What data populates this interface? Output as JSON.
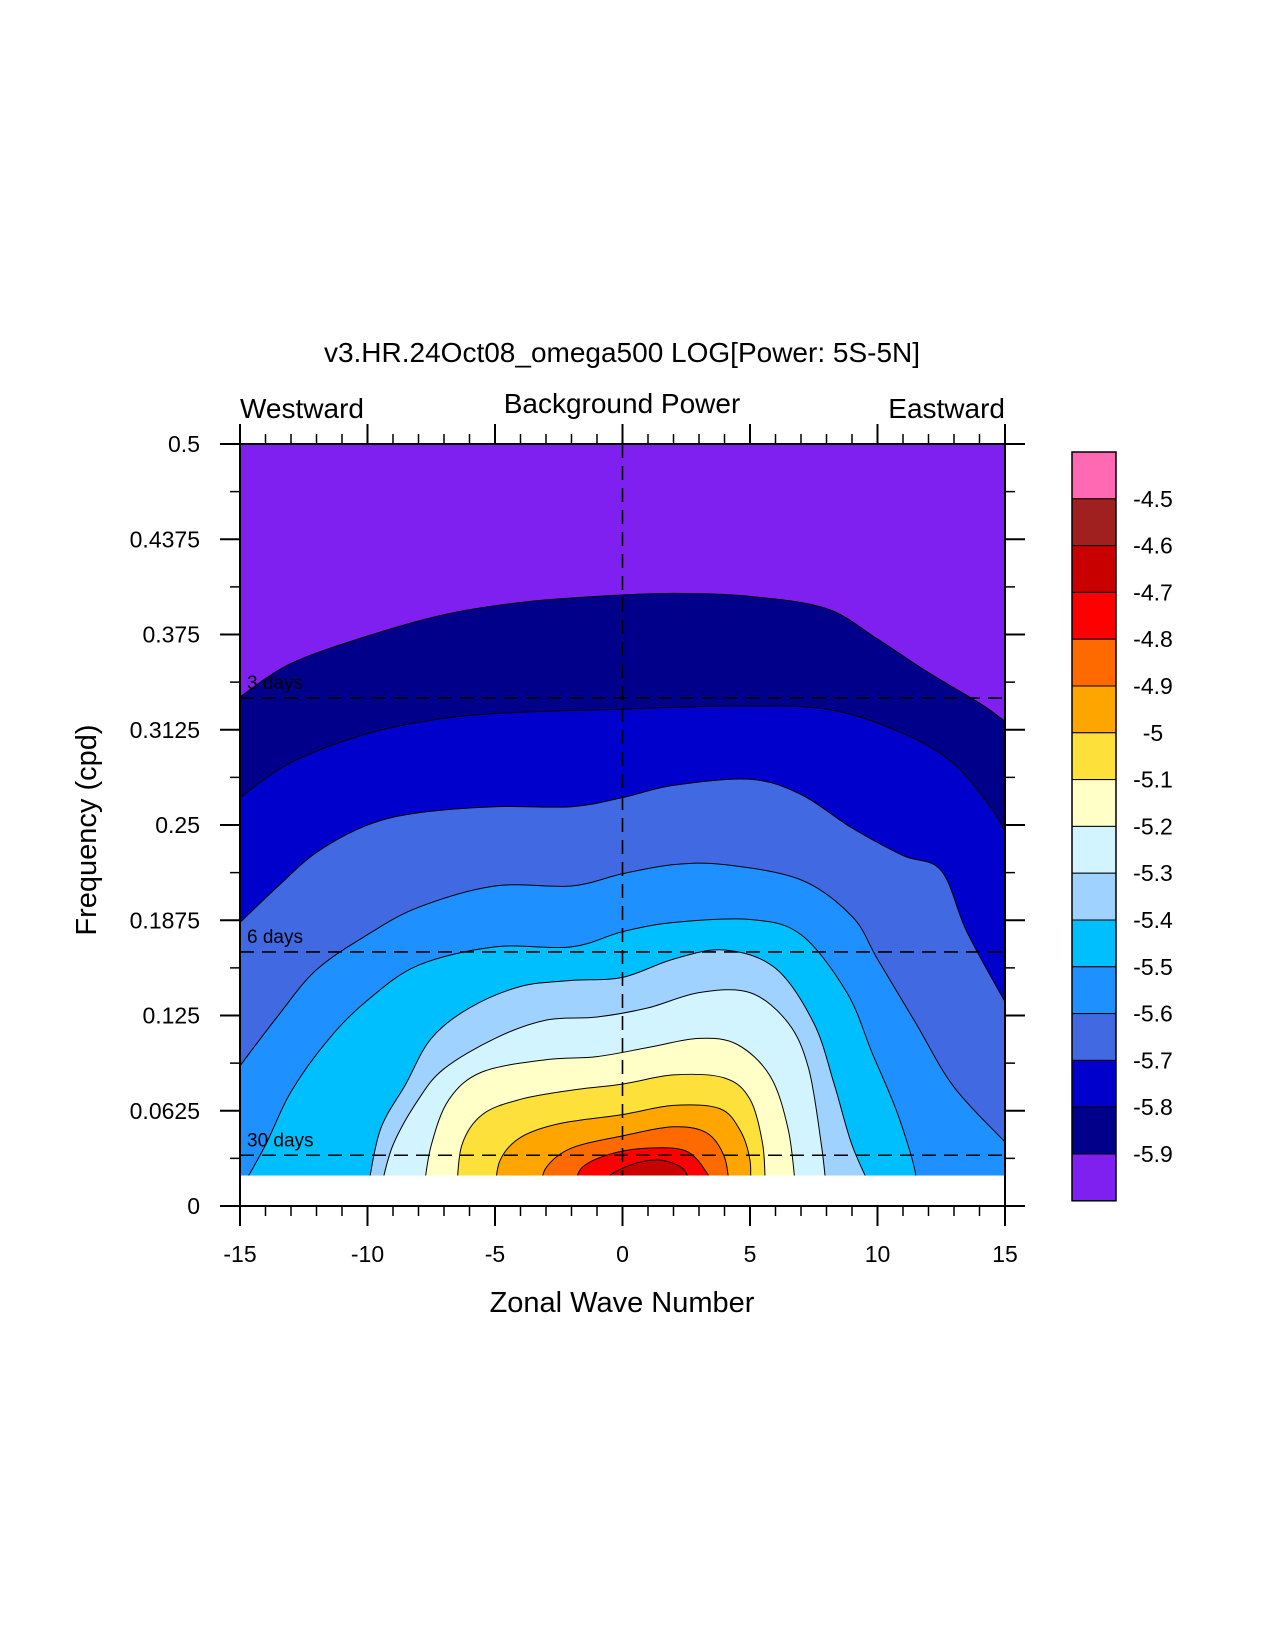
{
  "chart_data": {
    "type": "contour",
    "title": "v3.HR.24Oct08_omega500 LOG[Power: 5S-5N]",
    "subtitle_center": "Background Power",
    "subtitle_left": "Westward",
    "subtitle_right": "Eastward",
    "xlabel": "Zonal Wave Number",
    "ylabel": "Frequency (cpd)",
    "xlim": [
      -15,
      15
    ],
    "ylim": [
      0,
      0.5
    ],
    "x_ticks": [
      "-15",
      "-10",
      "-5",
      "0",
      "5",
      "10",
      "15"
    ],
    "x_tick_values": [
      -15,
      -10,
      -5,
      0,
      5,
      10,
      15
    ],
    "y_ticks": [
      "0",
      "0.0625",
      "0.125",
      "0.1875",
      "0.25",
      "0.3125",
      "0.375",
      "0.4375",
      "0.5"
    ],
    "y_tick_values": [
      0,
      0.0625,
      0.125,
      0.1875,
      0.25,
      0.3125,
      0.375,
      0.4375,
      0.5
    ],
    "period_lines": [
      {
        "label": "3 days",
        "freq": 0.3333
      },
      {
        "label": "6 days",
        "freq": 0.1667
      },
      {
        "label": "30 days",
        "freq": 0.0333
      }
    ],
    "colorbar": {
      "labels": [
        "-4.5",
        "-4.6",
        "-4.7",
        "-4.8",
        "-4.9",
        "-5",
        "-5.1",
        "-5.2",
        "-5.3",
        "-5.4",
        "-5.5",
        "-5.6",
        "-5.7",
        "-5.8",
        "-5.9"
      ],
      "colors": [
        "#ff69b4",
        "#a02020",
        "#c80000",
        "#ff0000",
        "#ff6a00",
        "#ffa500",
        "#fde03a",
        "#ffffc8",
        "#d2f4ff",
        "#a0d2ff",
        "#00bfff",
        "#1e90ff",
        "#4169e1",
        "#0000cd",
        "#00008b",
        "#8020f0"
      ]
    },
    "contour_bands": [
      {
        "level": "-5.9",
        "color": "#00008b",
        "boundary": [
          [
            -15,
            0.334
          ],
          [
            -13,
            0.356
          ],
          [
            -10,
            0.374
          ],
          [
            -7,
            0.388
          ],
          [
            -4,
            0.396
          ],
          [
            -1,
            0.4
          ],
          [
            2,
            0.402
          ],
          [
            5,
            0.4
          ],
          [
            8,
            0.392
          ],
          [
            10,
            0.372
          ],
          [
            12,
            0.35
          ],
          [
            14,
            0.33
          ],
          [
            15,
            0.318
          ]
        ]
      },
      {
        "level": "-5.8",
        "color": "#0000cd",
        "boundary": [
          [
            -15,
            0.268
          ],
          [
            -13,
            0.291
          ],
          [
            -10,
            0.31
          ],
          [
            -7,
            0.32
          ],
          [
            -4,
            0.324
          ],
          [
            0,
            0.326
          ],
          [
            4,
            0.328
          ],
          [
            8,
            0.326
          ],
          [
            11,
            0.31
          ],
          [
            13,
            0.29
          ],
          [
            14.5,
            0.26
          ],
          [
            15,
            0.245
          ]
        ]
      },
      {
        "level": "-5.7",
        "color": "#4169e1",
        "boundary": [
          [
            -15,
            0.186
          ],
          [
            -13.5,
            0.21
          ],
          [
            -12,
            0.232
          ],
          [
            -10,
            0.25
          ],
          [
            -8,
            0.258
          ],
          [
            -5,
            0.262
          ],
          [
            -2,
            0.262
          ],
          [
            0,
            0.268
          ],
          [
            2,
            0.276
          ],
          [
            5,
            0.28
          ],
          [
            7,
            0.27
          ],
          [
            9,
            0.248
          ],
          [
            11,
            0.23
          ],
          [
            12.5,
            0.22
          ],
          [
            13.5,
            0.18
          ],
          [
            15,
            0.134
          ]
        ]
      },
      {
        "level": "-5.6",
        "color": "#1e90ff",
        "boundary": [
          [
            -15,
            0.092
          ],
          [
            -13.5,
            0.125
          ],
          [
            -12,
            0.155
          ],
          [
            -10,
            0.178
          ],
          [
            -8,
            0.196
          ],
          [
            -5,
            0.21
          ],
          [
            -2,
            0.21
          ],
          [
            0,
            0.218
          ],
          [
            2,
            0.224
          ],
          [
            4,
            0.224
          ],
          [
            7,
            0.214
          ],
          [
            9,
            0.19
          ],
          [
            10,
            0.162
          ],
          [
            11.5,
            0.12
          ],
          [
            13,
            0.078
          ],
          [
            15,
            0.042
          ]
        ]
      },
      {
        "level": "-5.5",
        "color": "#00bfff",
        "boundary": [
          [
            -15,
            0.01
          ],
          [
            -14,
            0.04
          ],
          [
            -13,
            0.075
          ],
          [
            -11.5,
            0.11
          ],
          [
            -10,
            0.135
          ],
          [
            -8,
            0.158
          ],
          [
            -5,
            0.17
          ],
          [
            -2,
            0.17
          ],
          [
            0,
            0.18
          ],
          [
            2,
            0.186
          ],
          [
            5,
            0.188
          ],
          [
            7,
            0.178
          ],
          [
            8.8,
            0.14
          ],
          [
            9.8,
            0.1
          ],
          [
            10.8,
            0.06
          ],
          [
            11.5,
            0.02
          ],
          [
            11.2,
            0.01
          ]
        ]
      },
      {
        "level": "-5.4",
        "color": "#a0d2ff",
        "boundary": [
          [
            -10,
            0.01
          ],
          [
            -9.5,
            0.05
          ],
          [
            -8.5,
            0.08
          ],
          [
            -7.5,
            0.11
          ],
          [
            -6,
            0.13
          ],
          [
            -4,
            0.144
          ],
          [
            -2,
            0.148
          ],
          [
            0,
            0.15
          ],
          [
            2,
            0.162
          ],
          [
            4,
            0.168
          ],
          [
            6,
            0.156
          ],
          [
            7.5,
            0.12
          ],
          [
            8.3,
            0.08
          ],
          [
            9,
            0.04
          ],
          [
            9.8,
            0.01
          ]
        ]
      },
      {
        "level": "-5.3",
        "color": "#d2f4ff",
        "boundary": [
          [
            -9.5,
            0.01
          ],
          [
            -9,
            0.04
          ],
          [
            -8,
            0.07
          ],
          [
            -7,
            0.09
          ],
          [
            -5,
            0.11
          ],
          [
            -3,
            0.122
          ],
          [
            -1,
            0.124
          ],
          [
            1,
            0.13
          ],
          [
            3,
            0.14
          ],
          [
            5,
            0.14
          ],
          [
            6.5,
            0.12
          ],
          [
            7.3,
            0.09
          ],
          [
            7.8,
            0.04
          ],
          [
            8,
            0.01
          ]
        ]
      },
      {
        "level": "-5.2",
        "color": "#ffffc8",
        "boundary": [
          [
            -7.8,
            0.01
          ],
          [
            -7.5,
            0.04
          ],
          [
            -6.8,
            0.07
          ],
          [
            -5.5,
            0.088
          ],
          [
            -3,
            0.096
          ],
          [
            -1,
            0.098
          ],
          [
            1,
            0.104
          ],
          [
            3,
            0.11
          ],
          [
            4.5,
            0.106
          ],
          [
            5.8,
            0.085
          ],
          [
            6.5,
            0.05
          ],
          [
            6.8,
            0.01
          ]
        ]
      },
      {
        "level": "-5.1",
        "color": "#fde03a",
        "boundary": [
          [
            -6.5,
            0.01
          ],
          [
            -6.3,
            0.04
          ],
          [
            -5.5,
            0.06
          ],
          [
            -4,
            0.07
          ],
          [
            -2,
            0.076
          ],
          [
            0,
            0.08
          ],
          [
            2,
            0.086
          ],
          [
            4,
            0.084
          ],
          [
            5,
            0.07
          ],
          [
            5.5,
            0.04
          ],
          [
            5.6,
            0.01
          ]
        ]
      },
      {
        "level": "-5",
        "color": "#ffa500",
        "boundary": [
          [
            -5,
            0.01
          ],
          [
            -4.8,
            0.03
          ],
          [
            -4,
            0.045
          ],
          [
            -2.5,
            0.054
          ],
          [
            0,
            0.06
          ],
          [
            2,
            0.066
          ],
          [
            3.8,
            0.064
          ],
          [
            4.6,
            0.05
          ],
          [
            5,
            0.03
          ],
          [
            5,
            0.01
          ]
        ]
      },
      {
        "level": "-4.9",
        "color": "#ff6a00",
        "boundary": [
          [
            -3.2,
            0.01
          ],
          [
            -3,
            0.025
          ],
          [
            -2,
            0.038
          ],
          [
            0,
            0.046
          ],
          [
            2,
            0.052
          ],
          [
            3.3,
            0.048
          ],
          [
            4,
            0.032
          ],
          [
            4.2,
            0.01
          ]
        ]
      },
      {
        "level": "-4.8",
        "color": "#ff0000",
        "boundary": [
          [
            -1.9,
            0.01
          ],
          [
            -1.6,
            0.025
          ],
          [
            -0.5,
            0.034
          ],
          [
            1,
            0.038
          ],
          [
            2.5,
            0.036
          ],
          [
            3.3,
            0.022
          ],
          [
            3.6,
            0.01
          ]
        ]
      },
      {
        "level": "-4.7",
        "color": "#c80000",
        "boundary": [
          [
            -0.8,
            0.01
          ],
          [
            -0.5,
            0.02
          ],
          [
            0.5,
            0.028
          ],
          [
            1.5,
            0.03
          ],
          [
            2.4,
            0.024
          ],
          [
            2.7,
            0.01
          ]
        ]
      }
    ]
  }
}
